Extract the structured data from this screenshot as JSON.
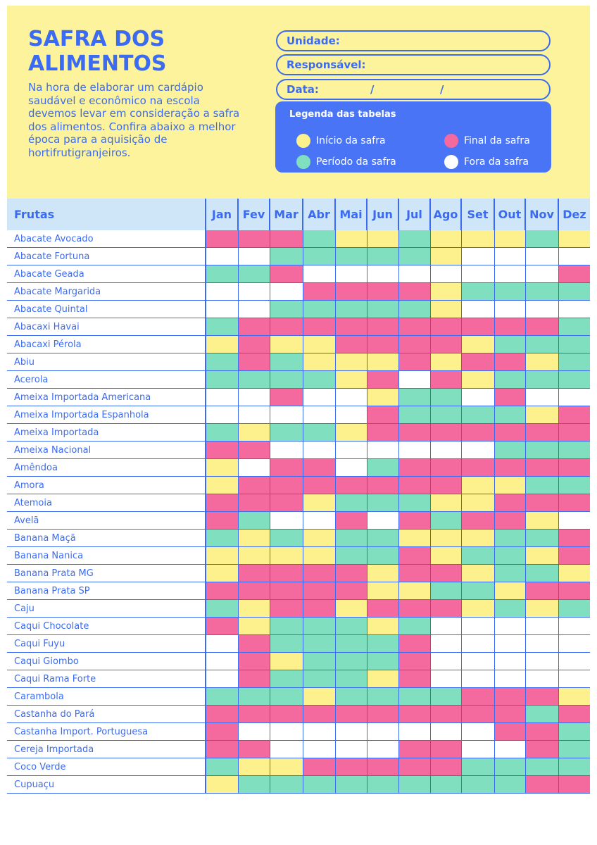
{
  "title": "SAFRA DOS\nALIMENTOS",
  "intro": "Na hora de elaborar um cardápio saudável e econômico na escola devemos levar em consideração a safra dos alimentos. Confira abaixo a melhor época para a aquisição de hortifrutigranjeiros.",
  "form": {
    "unidade_label": "Unidade:",
    "responsavel_label": "Responsável:",
    "data_label": "Data:",
    "data_sep1": "/",
    "data_sep2": "/"
  },
  "legend": {
    "title": "Legenda das tabelas",
    "items": [
      {
        "code": "I",
        "label": "Início da safra",
        "color": "#fcf18d"
      },
      {
        "code": "F",
        "label": "Final da safra",
        "color": "#f4699e"
      },
      {
        "code": "P",
        "label": "Período da safra",
        "color": "#80dfbe"
      },
      {
        "code": "O",
        "label": "Fora da safra",
        "color": "#ffffff"
      }
    ]
  },
  "table": {
    "first_header": "Frutas",
    "months": [
      "Jan",
      "Fev",
      "Mar",
      "Abr",
      "Mai",
      "Jun",
      "Jul",
      "Ago",
      "Set",
      "Out",
      "Nov",
      "Dez"
    ],
    "rows": [
      {
        "name": "Abacate Avocado",
        "cells": [
          "F",
          "F",
          "F",
          "P",
          "I",
          "I",
          "P",
          "I",
          "I",
          "I",
          "P",
          "I"
        ]
      },
      {
        "name": "Abacate Fortuna",
        "cells": [
          "O",
          "O",
          "P",
          "P",
          "P",
          "P",
          "P",
          "I",
          "O",
          "O",
          "O",
          "O"
        ]
      },
      {
        "name": "Abacate Geada",
        "cells": [
          "P",
          "P",
          "F",
          "O",
          "O",
          "O",
          "O",
          "O",
          "O",
          "O",
          "O",
          "F"
        ]
      },
      {
        "name": "Abacate Margarida",
        "cells": [
          "O",
          "O",
          "O",
          "F",
          "F",
          "F",
          "F",
          "I",
          "P",
          "P",
          "P",
          "P"
        ]
      },
      {
        "name": "Abacate Quintal",
        "cells": [
          "O",
          "O",
          "P",
          "P",
          "P",
          "P",
          "P",
          "I",
          "O",
          "O",
          "O",
          "O"
        ]
      },
      {
        "name": "Abacaxi Havai",
        "cells": [
          "P",
          "F",
          "F",
          "F",
          "F",
          "F",
          "F",
          "F",
          "F",
          "F",
          "F",
          "P"
        ]
      },
      {
        "name": "Abacaxi Pérola",
        "cells": [
          "I",
          "F",
          "I",
          "I",
          "F",
          "F",
          "F",
          "F",
          "I",
          "P",
          "P",
          "P"
        ]
      },
      {
        "name": "Abiu",
        "cells": [
          "P",
          "F",
          "P",
          "I",
          "I",
          "I",
          "F",
          "I",
          "F",
          "F",
          "I",
          "P"
        ]
      },
      {
        "name": "Acerola",
        "cells": [
          "P",
          "P",
          "P",
          "P",
          "I",
          "F",
          "O",
          "F",
          "I",
          "P",
          "P",
          "P"
        ]
      },
      {
        "name": "Ameixa Importada Americana",
        "cells": [
          "O",
          "O",
          "F",
          "O",
          "O",
          "I",
          "P",
          "P",
          "O",
          "F",
          "O",
          "O"
        ]
      },
      {
        "name": "Ameixa Importada Espanhola",
        "cells": [
          "O",
          "O",
          "O",
          "O",
          "O",
          "F",
          "P",
          "P",
          "P",
          "P",
          "I",
          "F"
        ]
      },
      {
        "name": "Ameixa Importada",
        "cells": [
          "P",
          "I",
          "P",
          "P",
          "I",
          "F",
          "F",
          "F",
          "F",
          "F",
          "F",
          "F"
        ]
      },
      {
        "name": "Ameixa Nacional",
        "cells": [
          "F",
          "F",
          "O",
          "O",
          "O",
          "O",
          "O",
          "O",
          "O",
          "P",
          "P",
          "P"
        ]
      },
      {
        "name": "Amêndoa",
        "cells": [
          "I",
          "O",
          "F",
          "F",
          "O",
          "P",
          "F",
          "F",
          "F",
          "F",
          "F",
          "F"
        ]
      },
      {
        "name": "Amora",
        "cells": [
          "I",
          "F",
          "F",
          "F",
          "F",
          "F",
          "F",
          "F",
          "I",
          "I",
          "P",
          "P"
        ]
      },
      {
        "name": "Atemoia",
        "cells": [
          "F",
          "F",
          "F",
          "I",
          "P",
          "P",
          "P",
          "I",
          "I",
          "F",
          "F",
          "F"
        ]
      },
      {
        "name": "Avelã",
        "cells": [
          "F",
          "P",
          "O",
          "O",
          "F",
          "O",
          "F",
          "P",
          "F",
          "F",
          "I",
          "O"
        ]
      },
      {
        "name": "Banana Maçã",
        "cells": [
          "P",
          "I",
          "P",
          "I",
          "P",
          "P",
          "I",
          "I",
          "I",
          "P",
          "P",
          "F"
        ]
      },
      {
        "name": "Banana Nanica",
        "cells": [
          "I",
          "I",
          "I",
          "I",
          "P",
          "P",
          "F",
          "I",
          "P",
          "P",
          "I",
          "F"
        ]
      },
      {
        "name": "Banana Prata MG",
        "cells": [
          "I",
          "F",
          "F",
          "F",
          "F",
          "I",
          "F",
          "F",
          "I",
          "P",
          "P",
          "I"
        ]
      },
      {
        "name": "Banana Prata SP",
        "cells": [
          "F",
          "F",
          "F",
          "F",
          "F",
          "I",
          "I",
          "P",
          "P",
          "I",
          "F",
          "F"
        ]
      },
      {
        "name": "Caju",
        "cells": [
          "P",
          "I",
          "F",
          "F",
          "I",
          "F",
          "F",
          "F",
          "I",
          "P",
          "I",
          "P"
        ]
      },
      {
        "name": "Caqui Chocolate",
        "cells": [
          "F",
          "I",
          "P",
          "P",
          "P",
          "I",
          "P",
          "O",
          "O",
          "O",
          "O",
          "O"
        ]
      },
      {
        "name": "Caqui Fuyu",
        "cells": [
          "O",
          "F",
          "P",
          "P",
          "P",
          "P",
          "F",
          "O",
          "O",
          "O",
          "O",
          "O"
        ]
      },
      {
        "name": "Caqui Giombo",
        "cells": [
          "O",
          "F",
          "I",
          "P",
          "P",
          "P",
          "F",
          "O",
          "O",
          "O",
          "O",
          "O"
        ]
      },
      {
        "name": "Caqui Rama Forte",
        "cells": [
          "O",
          "F",
          "P",
          "P",
          "P",
          "I",
          "F",
          "O",
          "O",
          "O",
          "O",
          "O"
        ]
      },
      {
        "name": "Carambola",
        "cells": [
          "P",
          "P",
          "P",
          "I",
          "P",
          "P",
          "P",
          "P",
          "F",
          "F",
          "F",
          "I"
        ]
      },
      {
        "name": "Castanha do Pará",
        "cells": [
          "F",
          "F",
          "F",
          "F",
          "F",
          "F",
          "F",
          "F",
          "F",
          "F",
          "P",
          "F"
        ]
      },
      {
        "name": "Castanha Import. Portuguesa",
        "cells": [
          "F",
          "O",
          "O",
          "O",
          "O",
          "O",
          "O",
          "O",
          "O",
          "F",
          "F",
          "P"
        ]
      },
      {
        "name": "Cereja Importada",
        "cells": [
          "F",
          "F",
          "O",
          "O",
          "O",
          "O",
          "F",
          "F",
          "O",
          "O",
          "F",
          "P"
        ]
      },
      {
        "name": "Coco Verde",
        "cells": [
          "P",
          "I",
          "I",
          "F",
          "F",
          "F",
          "F",
          "F",
          "P",
          "P",
          "P",
          "P"
        ]
      },
      {
        "name": "Cupuaçu",
        "cells": [
          "I",
          "P",
          "P",
          "P",
          "P",
          "P",
          "P",
          "P",
          "P",
          "P",
          "F",
          "F"
        ]
      }
    ]
  }
}
